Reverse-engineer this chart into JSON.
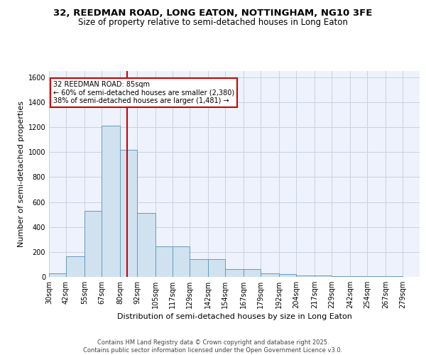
{
  "title_line1": "32, REEDMAN ROAD, LONG EATON, NOTTINGHAM, NG10 3FE",
  "title_line2": "Size of property relative to semi-detached houses in Long Eaton",
  "xlabel": "Distribution of semi-detached houses by size in Long Eaton",
  "ylabel": "Number of semi-detached properties",
  "bar_color": "#d0e2f0",
  "bar_edge_color": "#6699bb",
  "grid_color": "#c8d0e0",
  "background_color": "#eef2fc",
  "property_line_x": 85,
  "property_line_color": "#cc0000",
  "annotation_text": "32 REEDMAN ROAD: 85sqm\n← 60% of semi-detached houses are smaller (2,380)\n38% of semi-detached houses are larger (1,481) →",
  "annotation_box_color": "white",
  "annotation_box_edge": "#cc0000",
  "bin_edges": [
    30,
    42,
    55,
    67,
    80,
    92,
    105,
    117,
    129,
    142,
    154,
    167,
    179,
    192,
    204,
    217,
    229,
    242,
    254,
    267,
    279
  ],
  "bar_heights": [
    30,
    165,
    530,
    1210,
    1020,
    510,
    245,
    245,
    140,
    140,
    65,
    65,
    30,
    20,
    10,
    10,
    5,
    5,
    3,
    3
  ],
  "ylim": [
    0,
    1650
  ],
  "yticks": [
    0,
    200,
    400,
    600,
    800,
    1000,
    1200,
    1400,
    1600
  ],
  "footer_text": "Contains HM Land Registry data © Crown copyright and database right 2025.\nContains public sector information licensed under the Open Government Licence v3.0.",
  "title_fontsize": 9.5,
  "subtitle_fontsize": 8.5,
  "tick_fontsize": 7,
  "axis_label_fontsize": 8,
  "annotation_fontsize": 7,
  "footer_fontsize": 6
}
